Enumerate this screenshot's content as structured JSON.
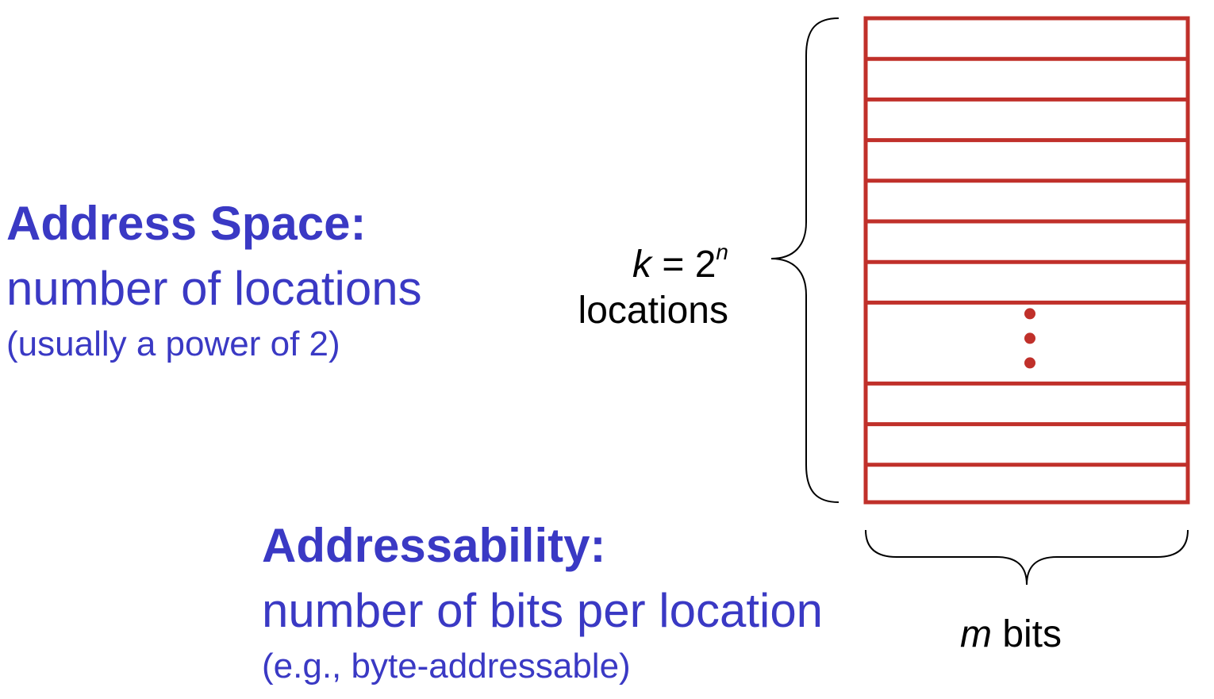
{
  "address_space": {
    "heading": "Address Space:",
    "description": "number of locations",
    "note": "(usually a power of 2)"
  },
  "addressability": {
    "heading": "Addressability:",
    "description": "number of bits per location",
    "note": "(e.g., byte-addressable)"
  },
  "locations_label": {
    "var": "k",
    "equals": " = 2",
    "exponent": "n",
    "word": "locations"
  },
  "bits_label": {
    "var": "m",
    "word": " bits"
  },
  "memory": {
    "rows_above_ellipsis": 7,
    "rows_below_ellipsis": 3,
    "ellipsis_dots": 3
  },
  "colors": {
    "heading_blue": "#3a39c4",
    "memory_red": "#c0302a",
    "label_black": "#000000"
  }
}
